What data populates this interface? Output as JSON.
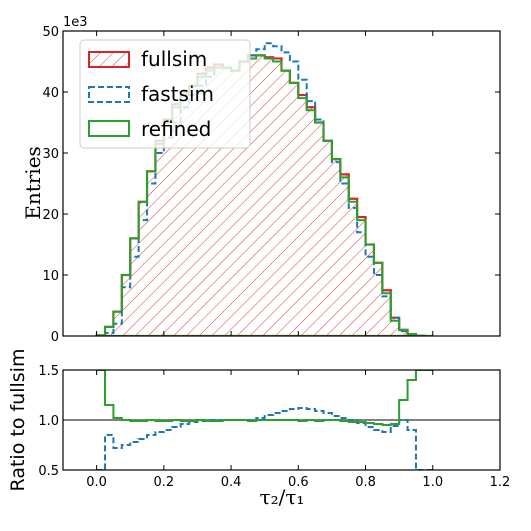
{
  "chart_data": [
    {
      "type": "histogram",
      "ylabel": "Entries",
      "offset_text": "1e3",
      "xlim": [
        -0.1,
        1.2
      ],
      "ylim": [
        0,
        50
      ],
      "yticks": [
        0,
        10,
        20,
        30,
        40,
        50
      ],
      "bin_edges": [
        0.0,
        0.025,
        0.05,
        0.075,
        0.1,
        0.125,
        0.15,
        0.175,
        0.2,
        0.225,
        0.25,
        0.275,
        0.3,
        0.325,
        0.35,
        0.375,
        0.4,
        0.425,
        0.45,
        0.475,
        0.5,
        0.525,
        0.55,
        0.575,
        0.6,
        0.625,
        0.65,
        0.675,
        0.7,
        0.725,
        0.75,
        0.775,
        0.8,
        0.825,
        0.85,
        0.875,
        0.9,
        0.925,
        0.95,
        0.975,
        1.0
      ],
      "legend_position": "upper-left",
      "series": [
        {
          "name": "fullsim",
          "color": "#d62728",
          "style": "hatched",
          "values": [
            0.1,
            1.5,
            4.0,
            10.0,
            16.0,
            22.0,
            27.0,
            32.0,
            35.5,
            38.0,
            40.0,
            41.0,
            43.0,
            44.0,
            44.5,
            44.0,
            43.5,
            45.0,
            46.0,
            46.0,
            45.7,
            45.5,
            43.5,
            41.5,
            39.5,
            37.5,
            35.0,
            32.0,
            29.0,
            26.5,
            22.5,
            19.5,
            15.0,
            12.0,
            7.5,
            3.0,
            1.0,
            0.3,
            0.05,
            0.0
          ]
        },
        {
          "name": "fastsim",
          "color": "#1f77b4",
          "style": "dashed",
          "values": [
            0.0,
            0.5,
            2.0,
            8.0,
            13.0,
            19.0,
            25.0,
            30.0,
            32.5,
            35.0,
            37.5,
            39.5,
            41.0,
            42.5,
            44.0,
            44.0,
            43.5,
            45.0,
            46.0,
            47.0,
            48.0,
            47.5,
            46.5,
            45.0,
            42.0,
            38.5,
            35.5,
            32.0,
            28.5,
            25.0,
            21.0,
            17.0,
            13.0,
            10.0,
            6.5,
            3.0,
            0.8,
            0.2,
            0.0,
            0.0
          ]
        },
        {
          "name": "refined",
          "color": "#2ca02c",
          "style": "solid",
          "values": [
            0.1,
            1.5,
            4.0,
            10.0,
            16.0,
            22.0,
            27.0,
            31.5,
            35.0,
            37.5,
            39.5,
            41.0,
            42.5,
            43.5,
            44.0,
            44.0,
            43.5,
            45.0,
            45.5,
            46.0,
            45.5,
            45.0,
            43.5,
            41.5,
            39.0,
            37.0,
            35.0,
            32.0,
            29.0,
            26.0,
            22.0,
            19.0,
            15.0,
            12.0,
            7.0,
            2.5,
            1.0,
            0.3,
            0.05,
            0.0
          ]
        }
      ]
    },
    {
      "type": "line",
      "xlabel": "τ₂/τ₁",
      "ylabel": "Ratio to fullsim",
      "xlim": [
        -0.1,
        1.2
      ],
      "ylim": [
        0.5,
        1.5
      ],
      "xticks": [
        0.0,
        0.2,
        0.4,
        0.6,
        0.8,
        1.0,
        1.2
      ],
      "xtick_labels": [
        "0.0",
        "0.2",
        "0.4",
        "0.6",
        "0.8",
        "1.0",
        "1.2"
      ],
      "yticks": [
        0.5,
        1.0,
        1.5
      ],
      "ytick_labels": [
        "0.5",
        "1.0",
        "1.5"
      ],
      "reference_line": 1.0,
      "bin_edges": [
        0.0,
        0.025,
        0.05,
        0.075,
        0.1,
        0.125,
        0.15,
        0.175,
        0.2,
        0.225,
        0.25,
        0.275,
        0.3,
        0.325,
        0.35,
        0.375,
        0.4,
        0.425,
        0.45,
        0.475,
        0.5,
        0.525,
        0.55,
        0.575,
        0.6,
        0.625,
        0.65,
        0.675,
        0.7,
        0.725,
        0.75,
        0.775,
        0.8,
        0.825,
        0.85,
        0.875,
        0.9,
        0.925,
        0.95,
        0.975,
        1.0
      ],
      "series": [
        {
          "name": "fastsim",
          "color": "#1f77b4",
          "style": "dashed",
          "values": [
            0.5,
            0.85,
            0.72,
            0.75,
            0.78,
            0.81,
            0.85,
            0.88,
            0.9,
            0.93,
            0.96,
            0.98,
            0.99,
            1.0,
            1.0,
            1.0,
            1.0,
            1.0,
            1.0,
            1.02,
            1.05,
            1.07,
            1.09,
            1.11,
            1.12,
            1.11,
            1.09,
            1.07,
            1.04,
            1.02,
            1.0,
            0.97,
            0.93,
            0.9,
            0.88,
            0.94,
            1.0,
            0.9,
            0.5,
            0.5
          ]
        },
        {
          "name": "refined",
          "color": "#2ca02c",
          "style": "solid",
          "values": [
            1.5,
            1.15,
            1.02,
            1.0,
            0.99,
            0.99,
            1.0,
            0.99,
            0.99,
            1.0,
            0.99,
            0.99,
            1.0,
            0.99,
            0.99,
            1.0,
            1.0,
            1.0,
            0.99,
            1.0,
            1.0,
            1.0,
            1.0,
            1.0,
            0.99,
            1.0,
            0.99,
            1.0,
            1.0,
            0.99,
            0.98,
            0.98,
            0.97,
            0.96,
            0.95,
            0.96,
            1.2,
            1.4,
            1.5,
            1.5
          ]
        }
      ]
    }
  ]
}
